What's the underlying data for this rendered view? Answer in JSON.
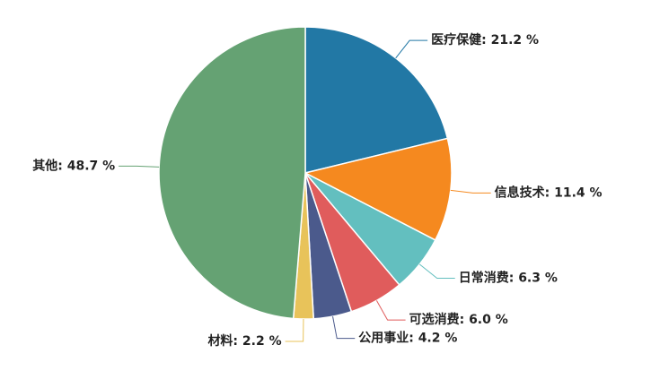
{
  "chart_data": {
    "type": "pie",
    "values": [
      21.2,
      11.4,
      6.3,
      6.0,
      4.2,
      2.2,
      48.7
    ],
    "value_labels": [
      "医疗保健: 21.2 %",
      "信息技术: 11.4 %",
      "日常消费: 6.3 %",
      "可选消费: 6.0 %",
      "公用事业: 4.2 %",
      "材料: 2.2 %",
      "其他: 48.7 %"
    ],
    "colors": [
      "#2278a5",
      "#f5891f",
      "#63bfbf",
      "#e05c5c",
      "#4b5a8c",
      "#e8c35a",
      "#65a273"
    ]
  }
}
